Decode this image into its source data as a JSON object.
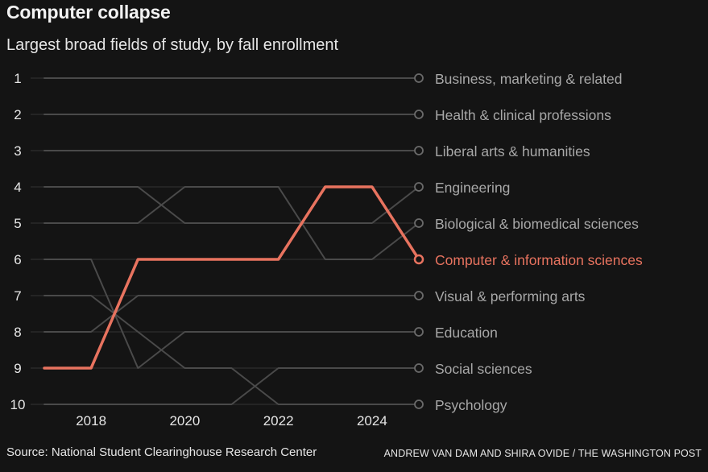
{
  "header": {
    "title": "Computer collapse",
    "subtitle": "Largest broad fields of study, by fall enrollment"
  },
  "footer": {
    "source": "Source: National Student Clearinghouse Research Center",
    "credit": "ANDREW VAN DAM AND SHIRA OVIDE / THE WASHINGTON POST"
  },
  "colors": {
    "background": "#141414",
    "highlight": "#e8735f",
    "gray_line": "#4a4a4a",
    "gridline": "#333333",
    "label": "#a8a8a8",
    "text": "#e6e6e6"
  },
  "chart_data": {
    "type": "line",
    "title": "Computer collapse",
    "subtitle": "Largest broad fields of study, by fall enrollment",
    "xlabel": "",
    "ylabel": "",
    "x": [
      2017,
      2018,
      2019,
      2020,
      2021,
      2022,
      2023,
      2024,
      2025
    ],
    "x_ticks": [
      "2018",
      "2020",
      "2022",
      "2024"
    ],
    "y_ticks": [
      "1",
      "2",
      "3",
      "4",
      "5",
      "6",
      "7",
      "8",
      "9",
      "10"
    ],
    "ylim": [
      1,
      10
    ],
    "y_inverted": true,
    "grid": true,
    "highlight_series": "Computer & information sciences",
    "series": [
      {
        "name": "Business, marketing & related",
        "values": [
          1,
          1,
          1,
          1,
          1,
          1,
          1,
          1,
          1
        ]
      },
      {
        "name": "Health & clinical professions",
        "values": [
          2,
          2,
          2,
          2,
          2,
          2,
          2,
          2,
          2
        ]
      },
      {
        "name": "Liberal arts & humanities",
        "values": [
          3,
          3,
          3,
          3,
          3,
          3,
          3,
          3,
          3
        ]
      },
      {
        "name": "Engineering",
        "values": [
          4,
          4,
          4,
          5,
          5,
          5,
          5,
          5,
          4
        ]
      },
      {
        "name": "Biological & biomedical sciences",
        "values": [
          5,
          5,
          5,
          4,
          4,
          4,
          6,
          6,
          5
        ]
      },
      {
        "name": "Computer & information sciences",
        "values": [
          9,
          9,
          6,
          6,
          6,
          6,
          4,
          4,
          6
        ]
      },
      {
        "name": "Psychology",
        "values": [
          7,
          7,
          8,
          9,
          9,
          10,
          10,
          10,
          10
        ]
      },
      {
        "name": "Education",
        "values": [
          6,
          6,
          9,
          8,
          8,
          8,
          8,
          8,
          8
        ]
      },
      {
        "name": "Visual & performing arts",
        "values": [
          8,
          8,
          7,
          7,
          7,
          7,
          7,
          7,
          7
        ]
      },
      {
        "name": "Social sciences",
        "values": [
          10,
          10,
          10,
          10,
          10,
          9,
          9,
          9,
          9
        ]
      }
    ]
  }
}
